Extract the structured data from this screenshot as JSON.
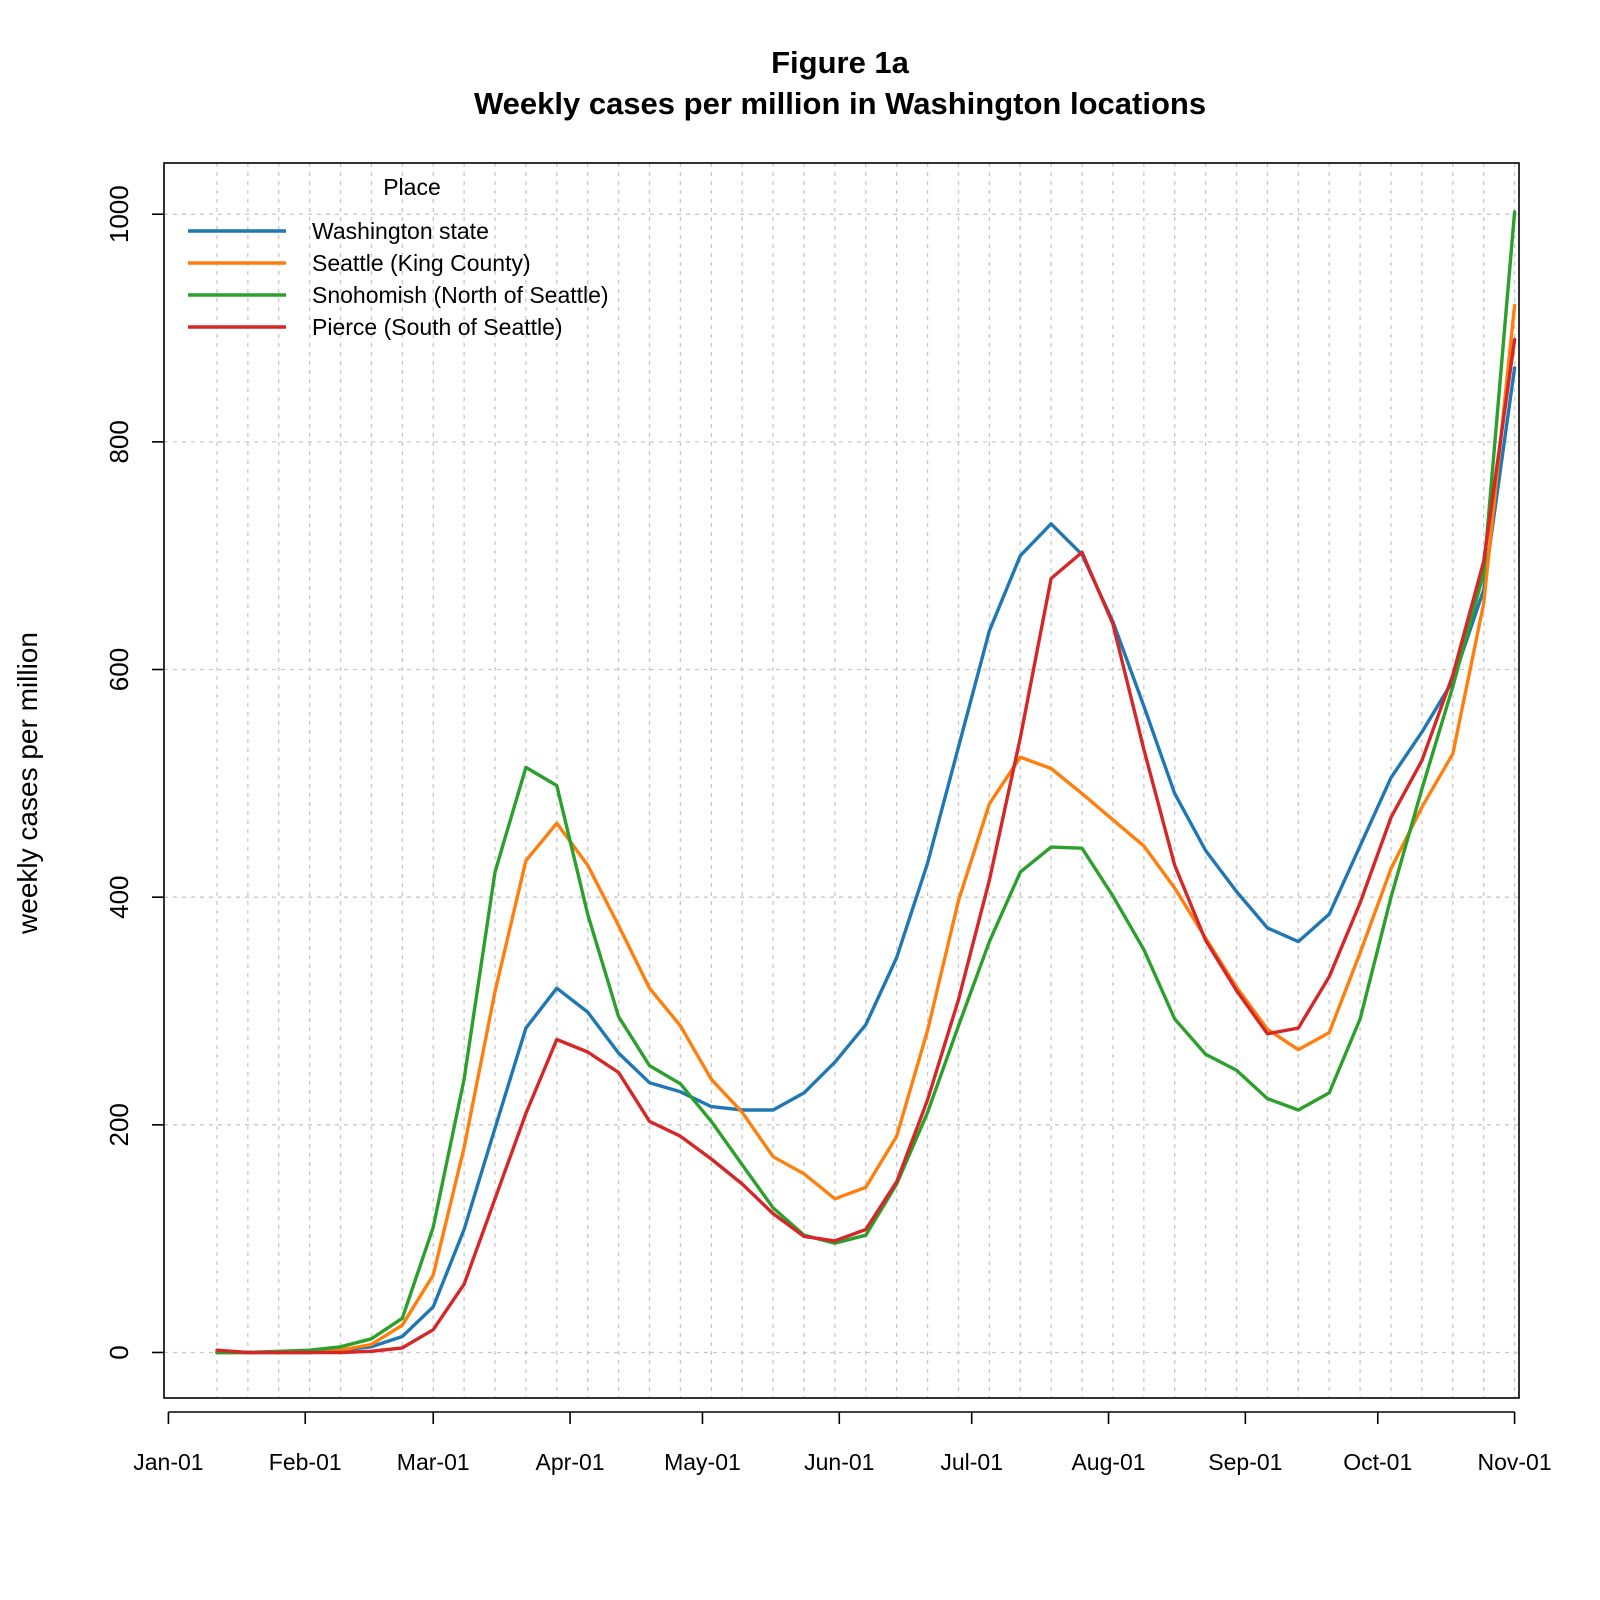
{
  "chart_data": {
    "type": "line",
    "title": "Figure 1a",
    "subtitle": "Weekly cases per million in Washington locations",
    "ylabel": "weekly cases per million",
    "xlabel": "",
    "grid": true,
    "legend": {
      "title": "Place",
      "position": "top-left"
    },
    "ylim": [
      -40,
      1045
    ],
    "xlim": [
      "2019-12-31",
      "2020-11-02"
    ],
    "y_ticks": [
      0,
      200,
      400,
      600,
      800,
      1000
    ],
    "x_ticks": [
      {
        "date": "2020-01-01",
        "label": "Jan-01"
      },
      {
        "date": "2020-02-01",
        "label": "Feb-01"
      },
      {
        "date": "2020-03-01",
        "label": "Mar-01"
      },
      {
        "date": "2020-04-01",
        "label": "Apr-01"
      },
      {
        "date": "2020-05-01",
        "label": "May-01"
      },
      {
        "date": "2020-06-01",
        "label": "Jun-01"
      },
      {
        "date": "2020-07-01",
        "label": "Jul-01"
      },
      {
        "date": "2020-08-01",
        "label": "Aug-01"
      },
      {
        "date": "2020-09-01",
        "label": "Sep-01"
      },
      {
        "date": "2020-10-01",
        "label": "Oct-01"
      },
      {
        "date": "2020-11-01",
        "label": "Nov-01"
      }
    ],
    "x": [
      "2020-01-12",
      "2020-01-19",
      "2020-01-26",
      "2020-02-02",
      "2020-02-09",
      "2020-02-16",
      "2020-02-23",
      "2020-03-01",
      "2020-03-08",
      "2020-03-15",
      "2020-03-22",
      "2020-03-29",
      "2020-04-05",
      "2020-04-12",
      "2020-04-19",
      "2020-04-26",
      "2020-05-03",
      "2020-05-10",
      "2020-05-17",
      "2020-05-24",
      "2020-05-31",
      "2020-06-07",
      "2020-06-14",
      "2020-06-21",
      "2020-06-28",
      "2020-07-05",
      "2020-07-12",
      "2020-07-19",
      "2020-07-26",
      "2020-08-02",
      "2020-08-09",
      "2020-08-16",
      "2020-08-23",
      "2020-08-30",
      "2020-09-06",
      "2020-09-13",
      "2020-09-20",
      "2020-09-27",
      "2020-10-04",
      "2020-10-11",
      "2020-10-18",
      "2020-10-25",
      "2020-11-01"
    ],
    "series": [
      {
        "name": "Washington state",
        "color": "#1f77b4",
        "values": [
          0,
          0,
          0,
          0,
          2,
          5,
          14,
          40,
          108,
          197,
          285,
          320,
          299,
          263,
          237,
          229,
          216,
          213,
          213,
          228,
          255,
          288,
          347,
          430,
          532,
          634,
          700,
          728,
          701,
          642,
          568,
          491,
          441,
          405,
          373,
          361,
          385,
          445,
          505,
          545,
          590,
          670,
          865
        ]
      },
      {
        "name": "Seattle (King County)",
        "color": "#ff7f0e",
        "values": [
          0,
          0,
          0,
          0,
          2,
          7,
          24,
          68,
          180,
          317,
          432,
          465,
          428,
          375,
          320,
          287,
          240,
          211,
          172,
          157,
          135,
          145,
          190,
          283,
          397,
          482,
          523,
          513,
          491,
          468,
          445,
          408,
          364,
          321,
          284,
          266,
          281,
          351,
          425,
          479,
          526,
          658,
          920
        ]
      },
      {
        "name": "Snohomish (North of Seattle)",
        "color": "#2ca02c",
        "values": [
          0,
          0,
          1,
          2,
          5,
          12,
          30,
          110,
          240,
          422,
          514,
          498,
          385,
          295,
          252,
          236,
          203,
          165,
          127,
          103,
          96,
          103,
          148,
          211,
          287,
          361,
          422,
          444,
          443,
          401,
          354,
          293,
          262,
          248,
          223,
          213,
          228,
          293,
          400,
          495,
          585,
          685,
          1002
        ]
      },
      {
        "name": "Pierce (South of Seattle)",
        "color": "#d62728",
        "values": [
          2,
          0,
          0,
          0,
          0,
          1,
          4,
          20,
          60,
          135,
          210,
          275,
          264,
          246,
          203,
          190,
          170,
          148,
          122,
          102,
          98,
          108,
          150,
          222,
          310,
          415,
          540,
          680,
          703,
          640,
          530,
          428,
          362,
          318,
          280,
          285,
          330,
          395,
          470,
          520,
          595,
          695,
          890
        ]
      }
    ]
  }
}
